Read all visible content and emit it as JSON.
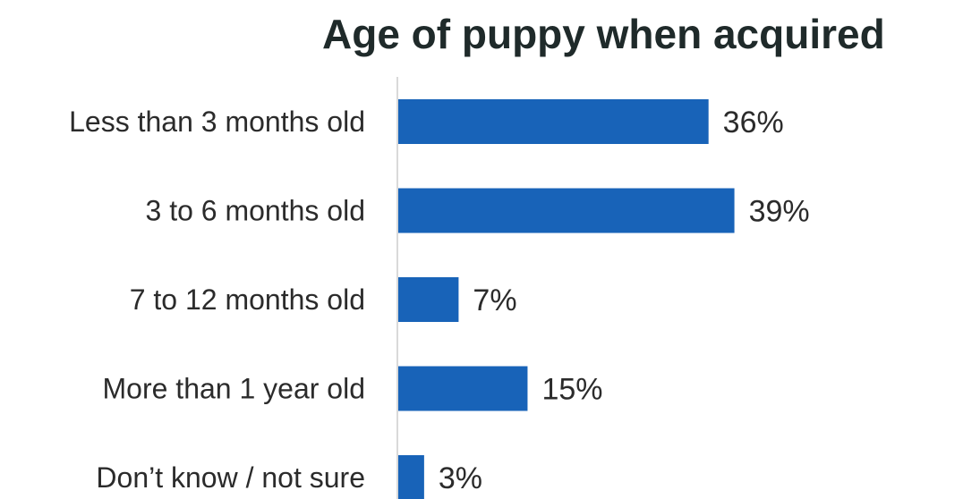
{
  "chart_data": {
    "type": "bar",
    "orientation": "horizontal",
    "title": "Age of puppy when acquired",
    "xlabel": "",
    "ylabel": "",
    "categories": [
      "Less than 3 months old",
      "3 to 6 months old",
      "7 to 12 months old",
      "More than 1 year old",
      "Don’t know / not sure"
    ],
    "values": [
      36,
      39,
      7,
      15,
      3
    ],
    "value_labels": [
      "36%",
      "39%",
      "7%",
      "15%",
      "3%"
    ],
    "xlim": [
      0,
      60
    ],
    "grid": false,
    "legend": "none",
    "bar_color": "#1863b8",
    "axis_color": "#d9d9d9"
  }
}
